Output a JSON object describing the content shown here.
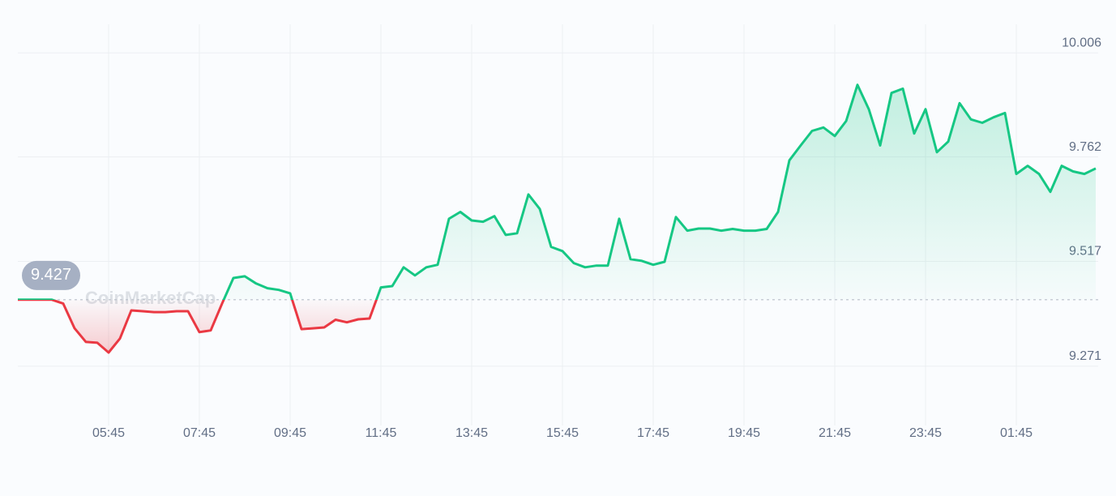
{
  "chart_data": {
    "type": "line",
    "watermark": "CoinMarketCap",
    "reference_value": 9.427,
    "x": [
      "03:45",
      "04:00",
      "04:15",
      "04:30",
      "04:45",
      "05:00",
      "05:15",
      "05:30",
      "05:45",
      "06:00",
      "06:15",
      "06:30",
      "06:45",
      "07:00",
      "07:15",
      "07:30",
      "07:45",
      "08:00",
      "08:15",
      "08:30",
      "08:45",
      "09:00",
      "09:15",
      "09:30",
      "09:45",
      "10:00",
      "10:15",
      "10:30",
      "10:45",
      "11:00",
      "11:15",
      "11:30",
      "11:45",
      "12:00",
      "12:15",
      "12:30",
      "12:45",
      "13:00",
      "13:15",
      "13:30",
      "13:45",
      "14:00",
      "14:15",
      "14:30",
      "14:45",
      "15:00",
      "15:15",
      "15:30",
      "15:45",
      "16:00",
      "16:15",
      "16:30",
      "16:45",
      "17:00",
      "17:15",
      "17:30",
      "17:45",
      "18:00",
      "18:15",
      "18:30",
      "18:45",
      "19:00",
      "19:15",
      "19:30",
      "19:45",
      "20:00",
      "20:15",
      "20:30",
      "20:45",
      "21:00",
      "21:15",
      "21:30",
      "21:45",
      "22:00",
      "22:15",
      "22:30",
      "22:45",
      "23:00",
      "23:15",
      "23:30",
      "23:45",
      "00:00",
      "00:15",
      "00:30",
      "00:45",
      "01:00",
      "01:15",
      "01:30",
      "01:45",
      "02:00",
      "02:15",
      "02:30",
      "02:45",
      "03:00",
      "03:15",
      "03:30"
    ],
    "series": [
      {
        "up_color": "#16c784",
        "down_color": "#ea3943",
        "values": [
          9.427,
          9.427,
          9.427,
          9.427,
          9.418,
          9.36,
          9.328,
          9.326,
          9.303,
          9.336,
          9.402,
          9.4,
          9.398,
          9.398,
          9.4,
          9.4,
          9.351,
          9.355,
          9.418,
          9.478,
          9.482,
          9.465,
          9.454,
          9.45,
          9.442,
          9.358,
          9.36,
          9.362,
          9.38,
          9.374,
          9.381,
          9.383,
          9.456,
          9.459,
          9.503,
          9.484,
          9.503,
          9.509,
          9.617,
          9.633,
          9.613,
          9.61,
          9.623,
          9.579,
          9.583,
          9.674,
          9.64,
          9.551,
          9.541,
          9.513,
          9.503,
          9.507,
          9.507,
          9.617,
          9.522,
          9.518,
          9.509,
          9.516,
          9.621,
          9.589,
          9.594,
          9.594,
          9.589,
          9.593,
          9.589,
          9.589,
          9.593,
          9.633,
          9.754,
          9.789,
          9.823,
          9.831,
          9.811,
          9.846,
          9.931,
          9.874,
          9.789,
          9.912,
          9.922,
          9.817,
          9.874,
          9.773,
          9.798,
          9.888,
          9.85,
          9.842,
          9.855,
          9.865,
          9.722,
          9.741,
          9.722,
          9.68,
          9.741,
          9.728,
          9.722,
          9.735
        ]
      }
    ],
    "xticks": [
      "05:45",
      "07:45",
      "09:45",
      "11:45",
      "13:45",
      "15:45",
      "17:45",
      "19:45",
      "21:45",
      "23:45",
      "01:45"
    ],
    "ylim": [
      9.132,
      10.092
    ],
    "yticks": [
      9.271,
      9.517,
      9.762,
      10.006
    ],
    "grid": true
  }
}
